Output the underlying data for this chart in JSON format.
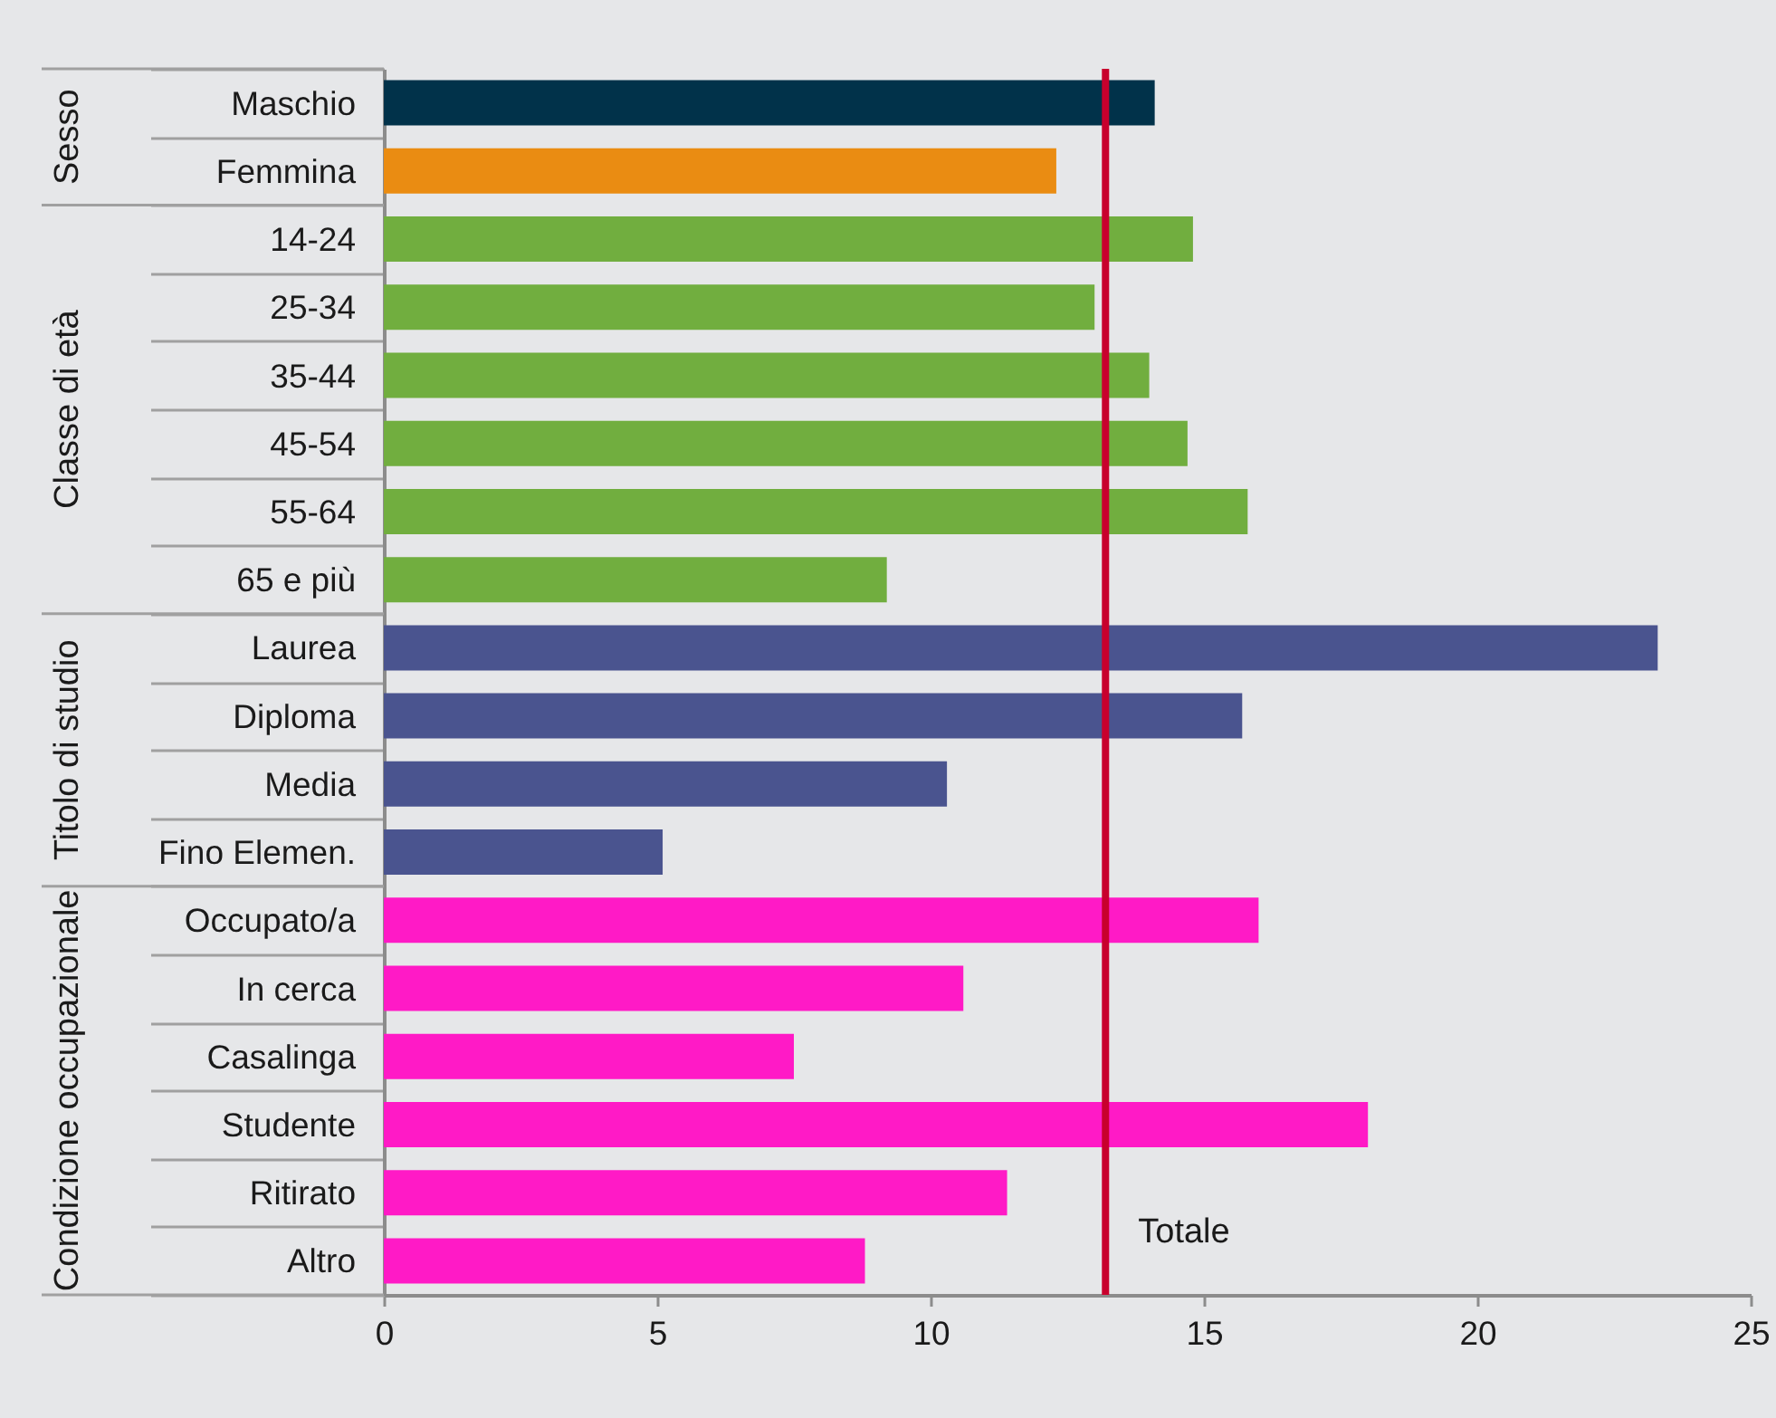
{
  "chart_data": {
    "type": "bar",
    "orientation": "horizontal",
    "categories": [
      "Maschio",
      "Femmina",
      "14-24",
      "25-34",
      "35-44",
      "45-54",
      "55-64",
      "65 e più",
      "Laurea",
      "Diploma",
      "Media",
      "Fino Elemen.",
      "Occupato/a",
      "In cerca",
      "Casalinga",
      "Studente",
      "Ritirato",
      "Altro"
    ],
    "values": [
      14.1,
      12.3,
      14.8,
      13.0,
      14.0,
      14.7,
      15.8,
      9.2,
      23.3,
      15.7,
      10.3,
      5.1,
      16.0,
      10.6,
      7.5,
      18.0,
      11.4,
      8.8
    ],
    "colors": [
      "#01324a",
      "#ea8c12",
      "#71ae3f",
      "#71ae3f",
      "#71ae3f",
      "#71ae3f",
      "#71ae3f",
      "#71ae3f",
      "#4a548f",
      "#4a548f",
      "#4a548f",
      "#4a548f",
      "#ff1ac6",
      "#ff1ac6",
      "#ff1ac6",
      "#ff1ac6",
      "#ff1ac6",
      "#ff1ac6"
    ],
    "xlim": [
      0,
      25
    ],
    "xticks": [
      0,
      5,
      10,
      15,
      20,
      25
    ],
    "grid": false,
    "ref_lines": [
      {
        "axis": "x",
        "value": 13.2,
        "label": "Totale",
        "color": "#c8002d"
      }
    ],
    "annotations": [
      "Sesso",
      "Classe di età",
      "Titolo di studio",
      "Condizione occupazionale"
    ]
  }
}
